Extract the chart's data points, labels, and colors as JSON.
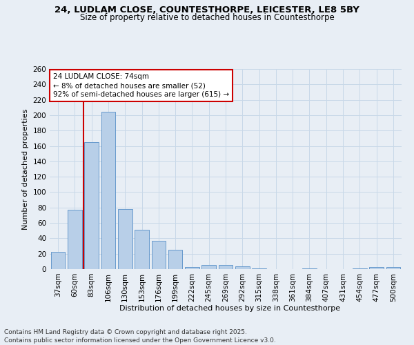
{
  "title_line1": "24, LUDLAM CLOSE, COUNTESTHORPE, LEICESTER, LE8 5BY",
  "title_line2": "Size of property relative to detached houses in Countesthorpe",
  "xlabel": "Distribution of detached houses by size in Countesthorpe",
  "ylabel": "Number of detached properties",
  "categories": [
    "37sqm",
    "60sqm",
    "83sqm",
    "106sqm",
    "130sqm",
    "153sqm",
    "176sqm",
    "199sqm",
    "222sqm",
    "245sqm",
    "269sqm",
    "292sqm",
    "315sqm",
    "338sqm",
    "361sqm",
    "384sqm",
    "407sqm",
    "431sqm",
    "454sqm",
    "477sqm",
    "500sqm"
  ],
  "values": [
    22,
    77,
    165,
    204,
    78,
    51,
    37,
    25,
    3,
    5,
    5,
    4,
    1,
    0,
    0,
    1,
    0,
    0,
    1,
    3,
    3
  ],
  "bar_color": "#b8cfe8",
  "bar_edge_color": "#6699cc",
  "grid_color": "#c8d8e8",
  "bg_color": "#e8eef5",
  "vline_color": "#cc0000",
  "vline_x": 1.5,
  "annotation_line1": "24 LUDLAM CLOSE: 74sqm",
  "annotation_line2": "← 8% of detached houses are smaller (52)",
  "annotation_line3": "92% of semi-detached houses are larger (615) →",
  "annotation_box_color": "#ffffff",
  "annotation_box_edge": "#cc0000",
  "ylim": [
    0,
    260
  ],
  "yticks": [
    0,
    20,
    40,
    60,
    80,
    100,
    120,
    140,
    160,
    180,
    200,
    220,
    240,
    260
  ],
  "footer_line1": "Contains HM Land Registry data © Crown copyright and database right 2025.",
  "footer_line2": "Contains public sector information licensed under the Open Government Licence v3.0.",
  "title_fontsize": 9.5,
  "subtitle_fontsize": 8.5,
  "axis_label_fontsize": 8,
  "tick_fontsize": 7.5,
  "annotation_fontsize": 7.5,
  "footer_fontsize": 6.5
}
